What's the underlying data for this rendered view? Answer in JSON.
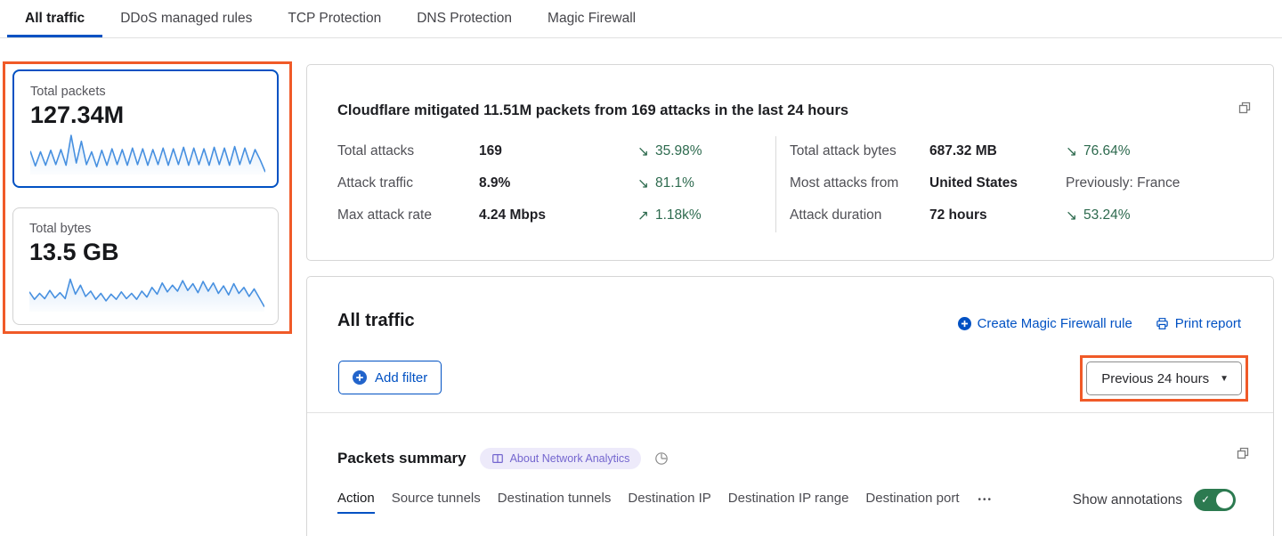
{
  "top_tabs": [
    {
      "label": "All traffic",
      "active": true
    },
    {
      "label": "DDoS managed rules",
      "active": false
    },
    {
      "label": "TCP Protection",
      "active": false
    },
    {
      "label": "DNS Protection",
      "active": false
    },
    {
      "label": "Magic Firewall",
      "active": false
    }
  ],
  "metric_cards": [
    {
      "label": "Total packets",
      "value": "127.34M",
      "selected": true,
      "sparkline": [
        0.58,
        0.18,
        0.56,
        0.2,
        0.6,
        0.22,
        0.62,
        0.2,
        1.0,
        0.26,
        0.84,
        0.22,
        0.56,
        0.16,
        0.6,
        0.2,
        0.64,
        0.22,
        0.62,
        0.2,
        0.66,
        0.22,
        0.64,
        0.2,
        0.62,
        0.22,
        0.66,
        0.2,
        0.64,
        0.22,
        0.68,
        0.2,
        0.66,
        0.22,
        0.64,
        0.2,
        0.68,
        0.22,
        0.66,
        0.2,
        0.7,
        0.22,
        0.66,
        0.24,
        0.62,
        0.34,
        0.02
      ]
    },
    {
      "label": "Total bytes",
      "value": "13.5 GB",
      "selected": false,
      "sparkline": [
        0.48,
        0.28,
        0.44,
        0.3,
        0.52,
        0.32,
        0.46,
        0.3,
        0.82,
        0.42,
        0.66,
        0.36,
        0.5,
        0.28,
        0.44,
        0.24,
        0.42,
        0.28,
        0.48,
        0.3,
        0.44,
        0.28,
        0.5,
        0.34,
        0.6,
        0.42,
        0.72,
        0.48,
        0.66,
        0.5,
        0.78,
        0.52,
        0.7,
        0.46,
        0.76,
        0.5,
        0.72,
        0.44,
        0.64,
        0.4,
        0.7,
        0.44,
        0.6,
        0.36,
        0.56,
        0.32,
        0.08
      ]
    }
  ],
  "summary": {
    "title": "Cloudflare mitigated 11.51M packets from 169 attacks in the last 24 hours",
    "stats_left": [
      {
        "label": "Total attacks",
        "value": "169",
        "arrow": "↘",
        "delta": "35.98%"
      },
      {
        "label": "Attack traffic",
        "value": "8.9%",
        "arrow": "↘",
        "delta": "81.1%"
      },
      {
        "label": "Max attack rate",
        "value": "4.24 Mbps",
        "arrow": "↗",
        "delta": "1.18k%"
      }
    ],
    "stats_right": [
      {
        "label": "Total attack bytes",
        "value": "687.32 MB",
        "arrow": "↘",
        "delta": "76.64%"
      },
      {
        "label": "Most attacks from",
        "value": "United States",
        "arrow": "",
        "delta": "Previously: France"
      },
      {
        "label": "Attack duration",
        "value": "72 hours",
        "arrow": "↘",
        "delta": "53.24%"
      }
    ]
  },
  "traffic": {
    "title": "All traffic",
    "create_rule_label": "Create Magic Firewall rule",
    "print_report_label": "Print report",
    "add_filter_label": "Add filter",
    "time_range_label": "Previous 24 hours"
  },
  "packets": {
    "title": "Packets summary",
    "badge_label": "About Network Analytics",
    "tabs": [
      {
        "label": "Action",
        "active": true
      },
      {
        "label": "Source tunnels",
        "active": false
      },
      {
        "label": "Destination tunnels",
        "active": false
      },
      {
        "label": "Destination IP",
        "active": false
      },
      {
        "label": "Destination IP range",
        "active": false
      },
      {
        "label": "Destination port",
        "active": false
      }
    ],
    "more_label": "•••",
    "show_annotations_label": "Show annotations",
    "annotations_on": true
  },
  "colors": {
    "accent_blue": "#0051c3",
    "delta_green": "#2d6a4e",
    "highlight_orange": "#f05a28",
    "toggle_green": "#2c7a50",
    "sparkline_blue": "#4790e0",
    "badge_purple": "#7466cf"
  }
}
